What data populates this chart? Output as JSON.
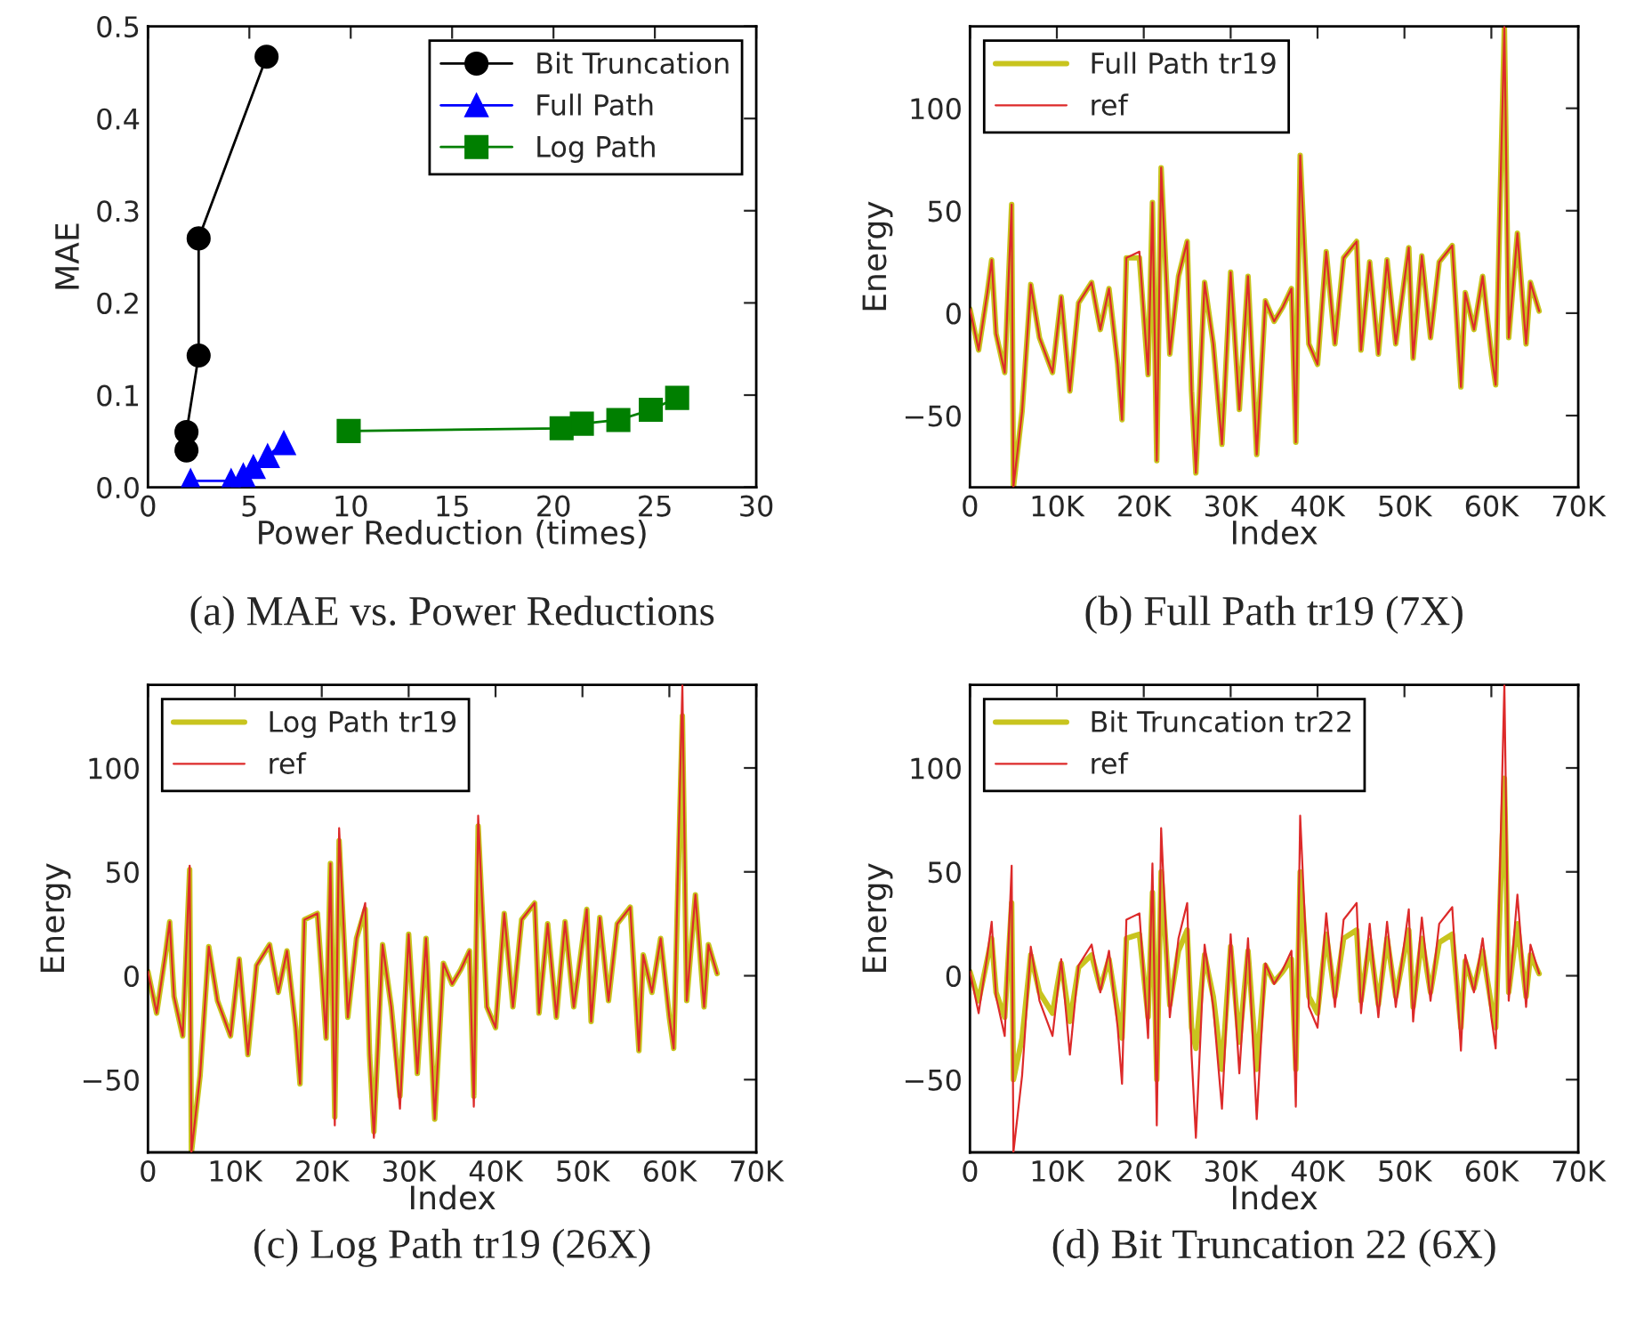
{
  "chart_data": [
    {
      "type": "line",
      "title": "(a) MAE vs. Power Reductions",
      "xlabel": "Power Reduction (times)",
      "ylabel": "MAE",
      "xlim": [
        0,
        30
      ],
      "xticks": [
        0,
        5,
        10,
        15,
        20,
        25,
        30
      ],
      "ylim": [
        0,
        0.5
      ],
      "yticks": [
        {
          "value": 0,
          "label": "0.0"
        },
        {
          "value": 0.1,
          "label": "0.1"
        },
        {
          "value": 0.2,
          "label": "0.2"
        },
        {
          "value": 0.3,
          "label": "0.3"
        },
        {
          "value": 0.4,
          "label": "0.4"
        },
        {
          "value": 0.5,
          "label": "0.5"
        }
      ],
      "legend": "top right",
      "series": [
        {
          "name": "Bit Truncation",
          "color": "#000000",
          "marker": "circle",
          "x": [
            1.9,
            1.9,
            2.5,
            2.5,
            5.85
          ],
          "values": [
            0.04,
            0.06,
            0.143,
            0.27,
            0.467
          ]
        },
        {
          "name": "Full Path",
          "color": "#0000ff",
          "marker": "triangle",
          "x": [
            2.1,
            4.1,
            4.7,
            5.2,
            5.9,
            6.7
          ],
          "values": [
            0.007,
            0.007,
            0.013,
            0.022,
            0.034,
            0.048
          ]
        },
        {
          "name": "Log Path",
          "color": "#007f00",
          "marker": "square",
          "x": [
            9.9,
            20.4,
            21.4,
            23.2,
            24.8,
            26.1
          ],
          "values": [
            0.061,
            0.064,
            0.069,
            0.073,
            0.084,
            0.097
          ]
        }
      ]
    },
    {
      "type": "line",
      "title": "(b) Full Path tr19 (7X)",
      "xlabel": "Index",
      "ylabel": "Energy",
      "xlim": [
        0,
        70000
      ],
      "xticks": [
        0,
        {
          "value": 10000,
          "label": "10K"
        },
        {
          "value": 20000,
          "label": "20K"
        },
        {
          "value": 30000,
          "label": "30K"
        },
        {
          "value": 40000,
          "label": "40K"
        },
        {
          "value": 50000,
          "label": "50K"
        },
        {
          "value": 60000,
          "label": "60K"
        },
        {
          "value": 70000,
          "label": "70K"
        }
      ],
      "ylim": [
        -85,
        140
      ],
      "yticks": [
        {
          "value": -50,
          "label": "−50"
        },
        0,
        50,
        100
      ],
      "legend": "top left",
      "x": [
        0,
        1000,
        2000,
        2500,
        3000,
        4000,
        4800,
        5000,
        6000,
        7000,
        8000,
        9500,
        10500,
        11500,
        12500,
        14000,
        15000,
        16000,
        17000,
        17500,
        18000,
        19500,
        20500,
        21000,
        21500,
        22000,
        23000,
        24000,
        25000,
        25500,
        26000,
        27000,
        28000,
        29000,
        30000,
        31000,
        32000,
        33000,
        34000,
        35000,
        36000,
        37000,
        37500,
        38000,
        39000,
        40000,
        41000,
        42000,
        43000,
        44500,
        45000,
        46000,
        47000,
        48000,
        49000,
        50500,
        51000,
        52000,
        53000,
        54000,
        55500,
        56500,
        57000,
        58000,
        59000,
        60000,
        60500,
        61500,
        62000,
        63000,
        64000,
        64500,
        65500
      ],
      "series": [
        {
          "name": "Full Path tr19",
          "color": "#c8c41e",
          "values": [
            2,
            -18,
            10,
            26,
            -10,
            -29,
            53,
            -85,
            -48,
            14,
            -12,
            -29,
            8,
            -38,
            5,
            15,
            -8,
            12,
            -25,
            -52,
            27,
            27,
            -30,
            54,
            -72,
            71,
            -20,
            18,
            35,
            -38,
            -78,
            15,
            -15,
            -64,
            20,
            -47,
            18,
            -69,
            6,
            -4,
            3,
            12,
            -63,
            77,
            -15,
            -25,
            30,
            -15,
            27,
            35,
            -18,
            25,
            -20,
            26,
            -15,
            32,
            -22,
            28,
            -12,
            25,
            33,
            -36,
            10,
            -8,
            18,
            -20,
            -35,
            140,
            -12,
            39,
            -15,
            15,
            1
          ]
        },
        {
          "name": "ref",
          "color": "#dd2a2a",
          "values": [
            2,
            -18,
            10,
            26,
            -10,
            -29,
            53,
            -85,
            -48,
            14,
            -12,
            -29,
            8,
            -38,
            5,
            15,
            -8,
            12,
            -25,
            -52,
            27,
            30,
            -30,
            54,
            -72,
            71,
            -20,
            18,
            35,
            -38,
            -78,
            15,
            -15,
            -64,
            20,
            -47,
            18,
            -69,
            6,
            -4,
            3,
            12,
            -63,
            77,
            -15,
            -25,
            30,
            -15,
            27,
            35,
            -18,
            25,
            -20,
            26,
            -15,
            32,
            -22,
            28,
            -12,
            25,
            33,
            -36,
            10,
            -8,
            18,
            -20,
            -35,
            140,
            -12,
            39,
            -15,
            15,
            1
          ]
        }
      ]
    },
    {
      "type": "line",
      "title": "(c) Log Path tr19 (26X)",
      "xlabel": "Index",
      "ylabel": "Energy",
      "xlim": [
        0,
        70000
      ],
      "xticks": [
        0,
        {
          "value": 10000,
          "label": "10K"
        },
        {
          "value": 20000,
          "label": "20K"
        },
        {
          "value": 30000,
          "label": "30K"
        },
        {
          "value": 40000,
          "label": "40K"
        },
        {
          "value": 50000,
          "label": "50K"
        },
        {
          "value": 60000,
          "label": "60K"
        },
        {
          "value": 70000,
          "label": "70K"
        }
      ],
      "ylim": [
        -85,
        140
      ],
      "yticks": [
        {
          "value": -50,
          "label": "−50"
        },
        0,
        50,
        100
      ],
      "legend": "top left",
      "x": [
        0,
        1000,
        2000,
        2500,
        3000,
        4000,
        4800,
        5000,
        6000,
        7000,
        8000,
        9500,
        10500,
        11500,
        12500,
        14000,
        15000,
        16000,
        17000,
        17500,
        18000,
        19500,
        20500,
        21000,
        21500,
        22000,
        23000,
        24000,
        25000,
        25500,
        26000,
        27000,
        28000,
        29000,
        30000,
        31000,
        32000,
        33000,
        34000,
        35000,
        36000,
        37000,
        37500,
        38000,
        39000,
        40000,
        41000,
        42000,
        43000,
        44500,
        45000,
        46000,
        47000,
        48000,
        49000,
        50500,
        51000,
        52000,
        53000,
        54000,
        55500,
        56500,
        57000,
        58000,
        59000,
        60000,
        60500,
        61500,
        62000,
        63000,
        64000,
        64500,
        65500
      ],
      "series": [
        {
          "name": "Log Path tr19",
          "color": "#c8c41e",
          "values": [
            2,
            -18,
            10,
            26,
            -10,
            -29,
            51,
            -85,
            -48,
            14,
            -12,
            -29,
            8,
            -38,
            5,
            15,
            -8,
            12,
            -25,
            -52,
            27,
            30,
            -30,
            54,
            -68,
            65,
            -20,
            18,
            32,
            -38,
            -75,
            15,
            -15,
            -58,
            20,
            -47,
            18,
            -69,
            6,
            -4,
            3,
            12,
            -58,
            72,
            -15,
            -25,
            30,
            -15,
            27,
            35,
            -18,
            25,
            -20,
            26,
            -15,
            32,
            -22,
            28,
            -12,
            25,
            33,
            -36,
            10,
            -8,
            18,
            -20,
            -35,
            125,
            -12,
            39,
            -15,
            15,
            1
          ]
        },
        {
          "name": "ref",
          "color": "#dd2a2a",
          "values": [
            2,
            -18,
            10,
            26,
            -10,
            -29,
            53,
            -85,
            -48,
            14,
            -12,
            -29,
            8,
            -38,
            5,
            15,
            -8,
            12,
            -25,
            -52,
            27,
            30,
            -30,
            54,
            -72,
            71,
            -20,
            18,
            35,
            -38,
            -78,
            15,
            -15,
            -64,
            20,
            -47,
            18,
            -69,
            6,
            -4,
            3,
            12,
            -63,
            77,
            -15,
            -25,
            30,
            -15,
            27,
            35,
            -18,
            25,
            -20,
            26,
            -15,
            32,
            -22,
            28,
            -12,
            25,
            33,
            -36,
            10,
            -8,
            18,
            -20,
            -35,
            140,
            -12,
            39,
            -15,
            15,
            1
          ]
        }
      ]
    },
    {
      "type": "line",
      "title": "(d) Bit Truncation 22 (6X)",
      "xlabel": "Index",
      "ylabel": "Energy",
      "xlim": [
        0,
        70000
      ],
      "xticks": [
        0,
        {
          "value": 10000,
          "label": "10K"
        },
        {
          "value": 20000,
          "label": "20K"
        },
        {
          "value": 30000,
          "label": "30K"
        },
        {
          "value": 40000,
          "label": "40K"
        },
        {
          "value": 50000,
          "label": "50K"
        },
        {
          "value": 60000,
          "label": "60K"
        },
        {
          "value": 70000,
          "label": "70K"
        }
      ],
      "ylim": [
        -85,
        140
      ],
      "yticks": [
        {
          "value": -50,
          "label": "−50"
        },
        0,
        50,
        100
      ],
      "legend": "top left",
      "x": [
        0,
        1000,
        2000,
        2500,
        3000,
        4000,
        4800,
        5000,
        6000,
        7000,
        8000,
        9500,
        10500,
        11500,
        12500,
        14000,
        15000,
        16000,
        17000,
        17500,
        18000,
        19500,
        20500,
        21000,
        21500,
        22000,
        23000,
        24000,
        25000,
        25500,
        26000,
        27000,
        28000,
        29000,
        30000,
        31000,
        32000,
        33000,
        34000,
        35000,
        36000,
        37000,
        37500,
        38000,
        39000,
        40000,
        41000,
        42000,
        43000,
        44500,
        45000,
        46000,
        47000,
        48000,
        49000,
        50500,
        51000,
        52000,
        53000,
        54000,
        55500,
        56500,
        57000,
        58000,
        59000,
        60000,
        60500,
        61500,
        62000,
        63000,
        64000,
        64500,
        65500
      ],
      "series": [
        {
          "name": "Bit Truncation tr22",
          "color": "#c8c41e",
          "values": [
            2,
            -12,
            8,
            18,
            -8,
            -20,
            35,
            -50,
            -30,
            10,
            -8,
            -18,
            6,
            -22,
            4,
            10,
            -6,
            8,
            -18,
            -30,
            18,
            20,
            -20,
            40,
            -50,
            50,
            -14,
            12,
            22,
            -25,
            -35,
            10,
            -10,
            -45,
            14,
            -32,
            12,
            -45,
            5,
            -3,
            2,
            8,
            -45,
            50,
            -10,
            -18,
            20,
            -10,
            18,
            22,
            -12,
            17,
            -14,
            18,
            -10,
            22,
            -15,
            18,
            -8,
            16,
            20,
            -25,
            7,
            -6,
            12,
            -14,
            -25,
            95,
            -8,
            25,
            -10,
            10,
            1
          ]
        },
        {
          "name": "ref",
          "color": "#dd2a2a",
          "values": [
            2,
            -18,
            10,
            26,
            -10,
            -29,
            53,
            -85,
            -48,
            14,
            -12,
            -29,
            8,
            -38,
            5,
            15,
            -8,
            12,
            -25,
            -52,
            27,
            30,
            -30,
            54,
            -72,
            71,
            -20,
            18,
            35,
            -38,
            -78,
            15,
            -15,
            -64,
            20,
            -47,
            18,
            -69,
            6,
            -4,
            3,
            12,
            -63,
            77,
            -15,
            -25,
            30,
            -15,
            27,
            35,
            -18,
            25,
            -20,
            26,
            -15,
            32,
            -22,
            28,
            -12,
            25,
            33,
            -36,
            10,
            -8,
            18,
            -20,
            -35,
            140,
            -12,
            39,
            -15,
            15,
            1
          ]
        }
      ]
    }
  ]
}
